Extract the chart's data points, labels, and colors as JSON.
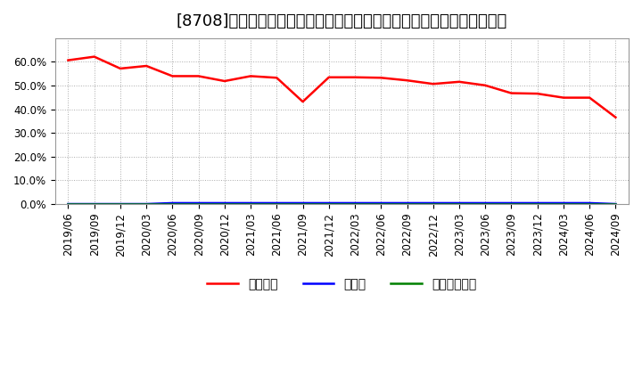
{
  "title": "[8708]　自己資本、のれん、繰延税金資産の総資産に対する比率の推移",
  "xlabel": "",
  "ylabel": "",
  "ylim": [
    0.0,
    0.7
  ],
  "yticks": [
    0.0,
    0.1,
    0.2,
    0.3,
    0.4,
    0.5,
    0.6
  ],
  "background_color": "#ffffff",
  "plot_bg_color": "#ffffff",
  "grid_color": "#aaaaaa",
  "dates": [
    "2019/06",
    "2019/09",
    "2019/12",
    "2020/03",
    "2020/06",
    "2020/09",
    "2020/12",
    "2021/03",
    "2021/06",
    "2021/09",
    "2021/12",
    "2022/03",
    "2022/06",
    "2022/09",
    "2022/12",
    "2023/03",
    "2023/06",
    "2023/09",
    "2023/12",
    "2024/03",
    "2024/06",
    "2024/09"
  ],
  "jikoshihon": [
    0.607,
    0.622,
    0.572,
    0.583,
    0.54,
    0.54,
    0.519,
    0.54,
    0.533,
    0.432,
    0.535,
    0.535,
    0.533,
    0.522,
    0.507,
    0.516,
    0.501,
    0.468,
    0.466,
    0.449,
    0.449,
    0.366
  ],
  "noren": [
    0.0,
    0.0,
    0.0,
    0.0,
    0.004,
    0.004,
    0.004,
    0.004,
    0.004,
    0.004,
    0.004,
    0.004,
    0.004,
    0.004,
    0.004,
    0.004,
    0.004,
    0.004,
    0.004,
    0.004,
    0.004,
    0.0
  ],
  "kurinobe": [
    0.0,
    0.0,
    0.0,
    0.0,
    0.0,
    0.0,
    0.0,
    0.0,
    0.0,
    0.0,
    0.0,
    0.0,
    0.0,
    0.0,
    0.0,
    0.0,
    0.0,
    0.0,
    0.0,
    0.0,
    0.0,
    0.0
  ],
  "jikoshihon_color": "#ff0000",
  "noren_color": "#0000ff",
  "kurinobe_color": "#008000",
  "line_width": 1.8,
  "legend_labels": [
    "自己資本",
    "のれん",
    "繰延税金資産"
  ],
  "title_fontsize": 13,
  "tick_fontsize": 8.5,
  "legend_fontsize": 10
}
